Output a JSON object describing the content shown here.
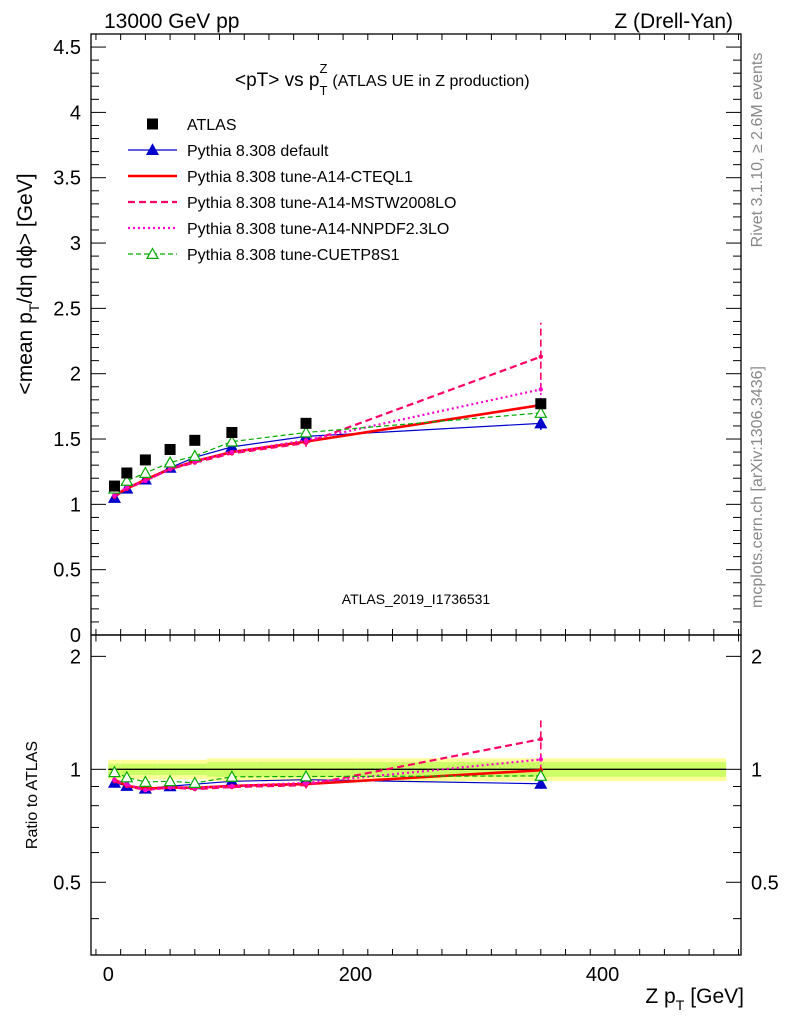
{
  "header": {
    "left": "13000 GeV pp",
    "right": "Z (Drell-Yan)"
  },
  "side_labels": {
    "rivet": "Rivet 3.1.10, ≥ 2.6M events",
    "mcplots": "mcplots.cern.ch [arXiv:1306.3436]"
  },
  "colors": {
    "ATLAS": "#000000",
    "default": "#0000cc",
    "cteql1": "#ff0000",
    "mstw": "#ff0066",
    "nnpdf": "#ff00cc",
    "cuetp8s1": "#00aa00",
    "band_inner": "#ccff66",
    "band_outer": "#ffff99"
  },
  "chart_data": {
    "type": "line",
    "title": "<pT> vs p_T^Z (ATLAS UE in Z production)",
    "title_main": "<pT> vs p",
    "title_sup": "Z",
    "title_sub": "T",
    "title_rest": "(ATLAS UE in Z production)",
    "analysis": "ATLAS_2019_I1736531",
    "xlabel": "Z p_T [GeV]",
    "xlabel_main": "Z p",
    "xlabel_sub": "T",
    "xlabel_unit": "[GeV]",
    "ylabel": "<mean p_T/dη dϕ> [GeV]",
    "ylabel_main": "<mean p",
    "ylabel_sub": "T",
    "ylabel_rest": "/dη dϕ> [GeV]",
    "ratio_ylabel": "Ratio to ATLAS",
    "xlim": [
      -14,
      512
    ],
    "ylim": [
      0,
      4.6
    ],
    "ratio_ylim": [
      0.32,
      2.28
    ],
    "xticks": [
      0,
      200,
      400
    ],
    "xtick_labels": [
      "0",
      "200",
      "400"
    ],
    "yticks": [
      0,
      0.5,
      1,
      1.5,
      2,
      2.5,
      3,
      3.5,
      4,
      4.5
    ],
    "ytick_labels": [
      "0",
      "0.5",
      "1",
      "1.5",
      "2",
      "2.5",
      "3",
      "3.5",
      "4",
      "4.5"
    ],
    "ratio_yticks": [
      0.5,
      1,
      2
    ],
    "ratio_ytick_labels": [
      "0.5",
      "1",
      "2"
    ],
    "x": [
      5,
      15,
      30,
      50,
      70,
      100,
      160,
      350
    ],
    "bin_edges": [
      0,
      10,
      20,
      40,
      60,
      80,
      120,
      200,
      500
    ],
    "legend_position": "top-left",
    "series": [
      {
        "key": "ATLAS",
        "name": "ATLAS",
        "style": "markers",
        "values": [
          1.14,
          1.24,
          1.34,
          1.42,
          1.49,
          1.55,
          1.62,
          1.77
        ],
        "band_inner": [
          0.035,
          0.035,
          0.035,
          0.035,
          0.035,
          0.045,
          0.045,
          0.045
        ],
        "band_outer": [
          0.06,
          0.06,
          0.06,
          0.06,
          0.06,
          0.07,
          0.07,
          0.07
        ]
      },
      {
        "key": "default",
        "name": "Pythia 8.308 default",
        "style": "solid-triangle",
        "values": [
          1.05,
          1.12,
          1.19,
          1.28,
          1.36,
          1.44,
          1.52,
          1.62
        ],
        "errors": [
          0.015,
          0.01,
          0.01,
          0.01,
          0.01,
          0.01,
          0.015,
          0.05
        ]
      },
      {
        "key": "cteql1",
        "name": "Pythia 8.308 tune-A14-CTEQL1",
        "style": "thick-solid",
        "values": [
          1.07,
          1.12,
          1.19,
          1.27,
          1.33,
          1.4,
          1.48,
          1.76
        ],
        "errors": [
          0.01,
          0.01,
          0.01,
          0.01,
          0.01,
          0.01,
          0.02,
          0.04
        ]
      },
      {
        "key": "mstw",
        "name": "Pythia 8.308 tune-A14-MSTW2008LO",
        "style": "dashed",
        "values": [
          1.06,
          1.12,
          1.18,
          1.27,
          1.32,
          1.39,
          1.47,
          2.13
        ],
        "errors": [
          0.01,
          0.01,
          0.01,
          0.01,
          0.015,
          0.015,
          0.03,
          0.26
        ]
      },
      {
        "key": "nnpdf",
        "name": "Pythia 8.308 tune-A14-NNPDF2.3LO",
        "style": "dotted",
        "values": [
          1.07,
          1.13,
          1.18,
          1.27,
          1.33,
          1.4,
          1.49,
          1.88
        ],
        "errors": [
          0.01,
          0.01,
          0.01,
          0.01,
          0.01,
          0.01,
          0.02,
          0.08
        ]
      },
      {
        "key": "cuetp8s1",
        "name": "Pythia 8.308 tune-CUETP8S1",
        "style": "dashed-open-triangle",
        "values": [
          1.12,
          1.18,
          1.24,
          1.32,
          1.37,
          1.48,
          1.55,
          1.7
        ],
        "errors": [
          0.01,
          0.01,
          0.01,
          0.01,
          0.01,
          0.01,
          0.02,
          0.04
        ]
      }
    ]
  }
}
